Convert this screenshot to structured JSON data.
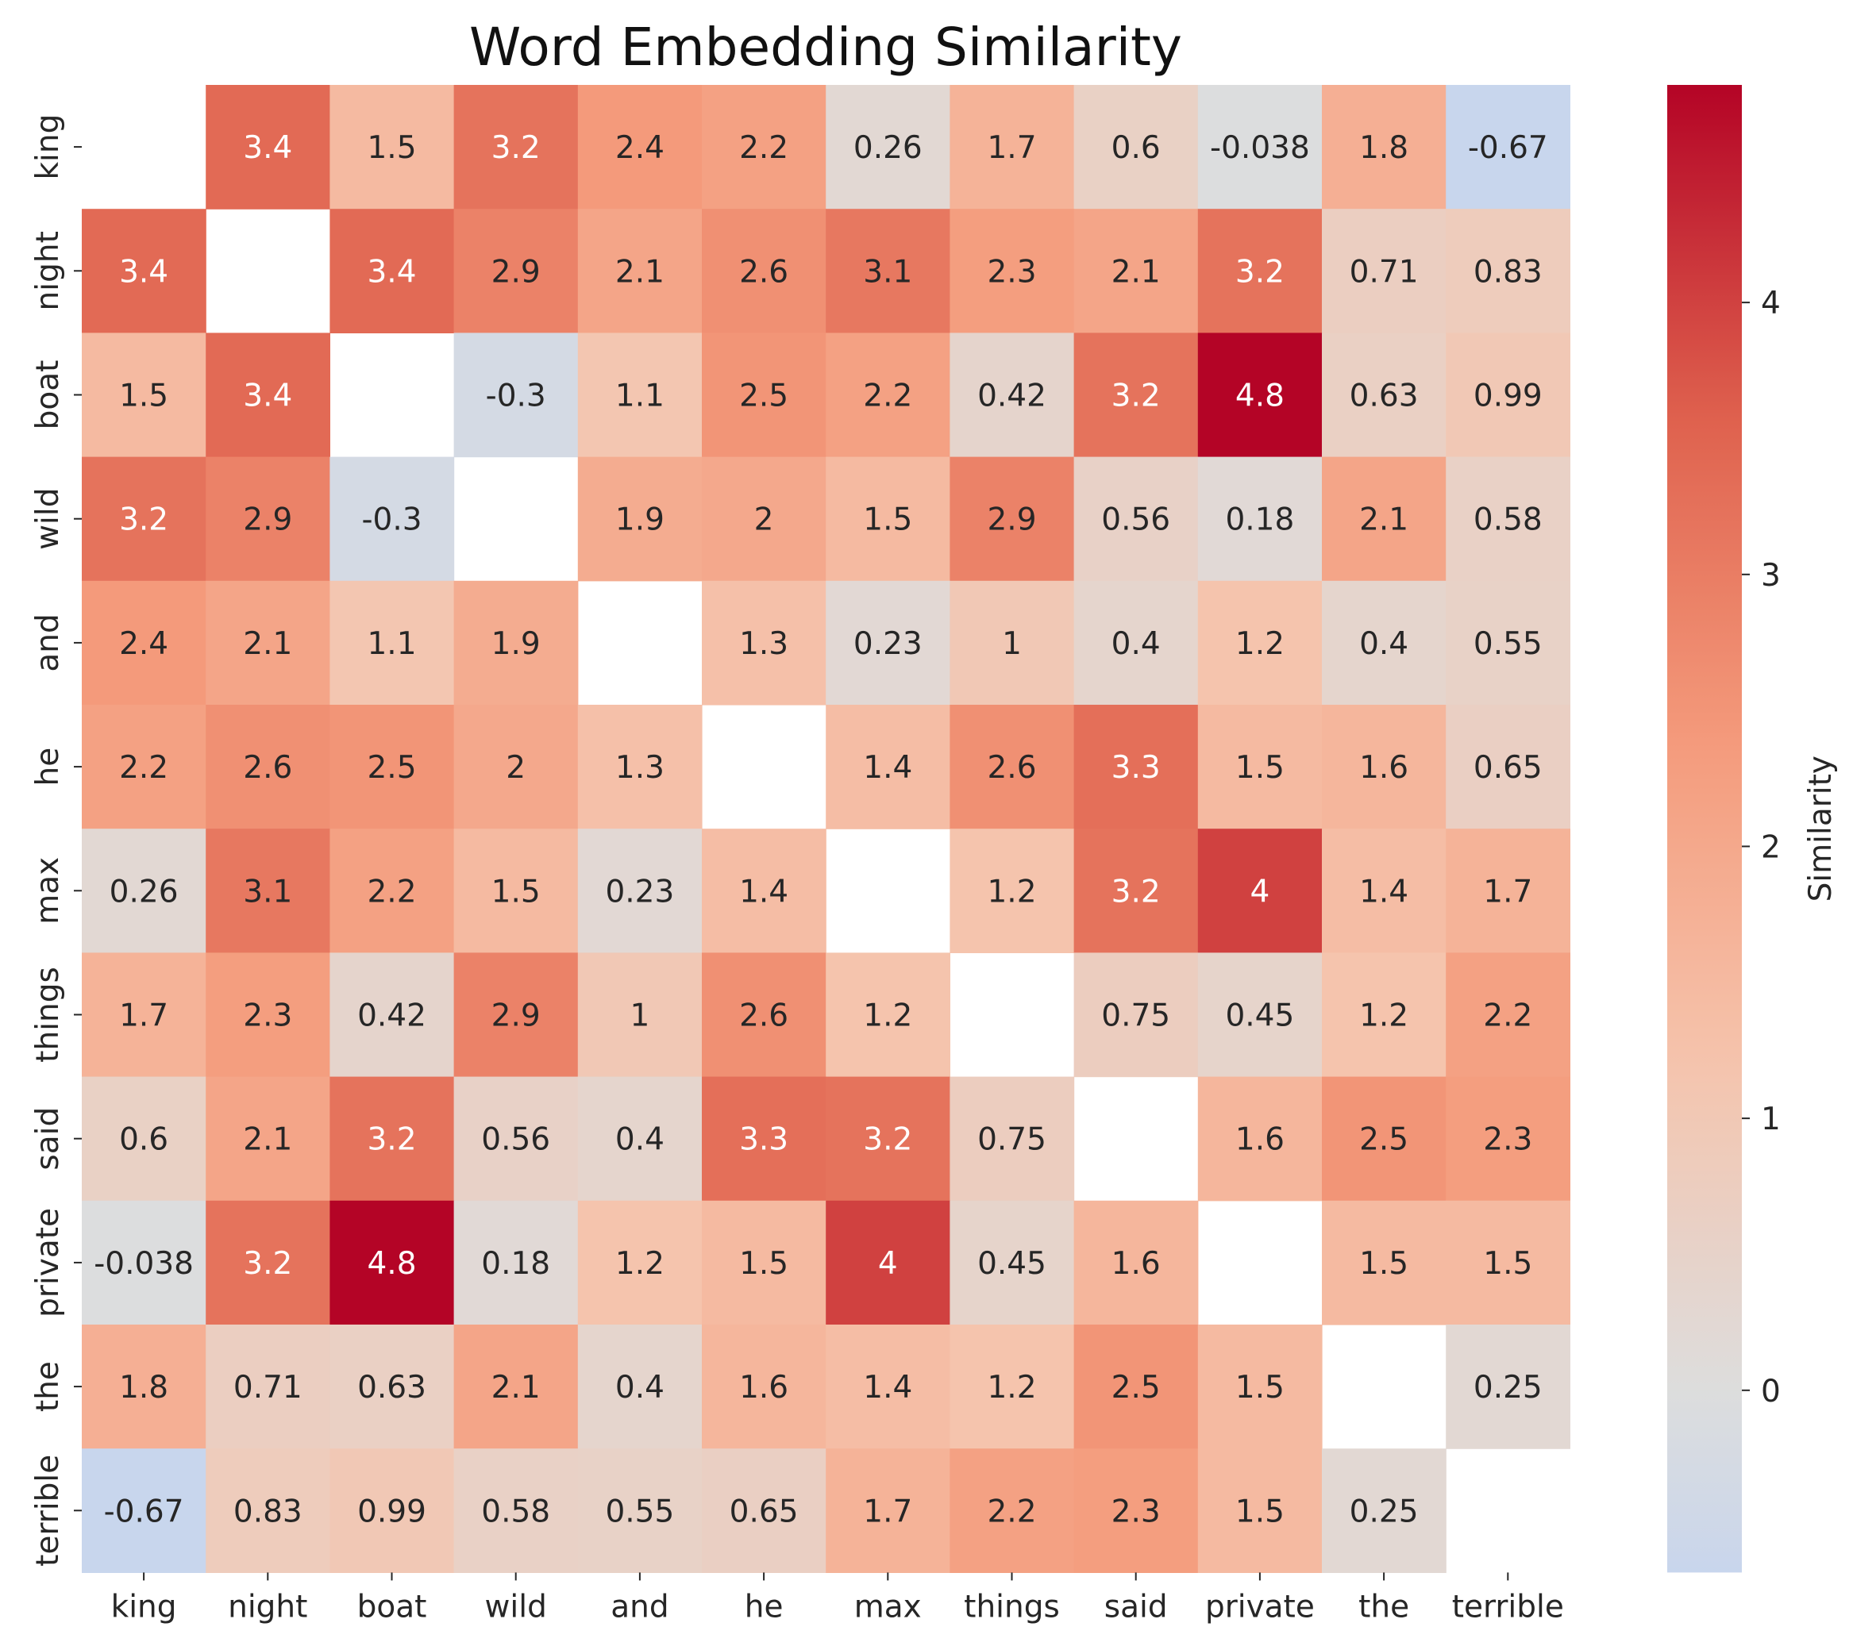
{
  "chart_data": {
    "type": "heatmap",
    "title": "Word Embedding Similarity",
    "xlabel": "",
    "ylabel": "",
    "words": [
      "king",
      "night",
      "boat",
      "wild",
      "and",
      "he",
      "max",
      "things",
      "said",
      "private",
      "the",
      "terrible"
    ],
    "matrix": [
      [
        null,
        3.4,
        1.5,
        3.2,
        2.4,
        2.2,
        0.26,
        1.7,
        0.6,
        -0.038,
        1.8,
        -0.67
      ],
      [
        3.4,
        null,
        3.4,
        2.9,
        2.1,
        2.6,
        3.1,
        2.3,
        2.1,
        3.2,
        0.71,
        0.83
      ],
      [
        1.5,
        3.4,
        null,
        -0.3,
        1.1,
        2.5,
        2.2,
        0.42,
        3.2,
        4.8,
        0.63,
        0.99
      ],
      [
        3.2,
        2.9,
        -0.3,
        null,
        1.9,
        2,
        1.5,
        2.9,
        0.56,
        0.18,
        2.1,
        0.58
      ],
      [
        2.4,
        2.1,
        1.1,
        1.9,
        null,
        1.3,
        0.23,
        1,
        0.4,
        1.2,
        0.4,
        0.55
      ],
      [
        2.2,
        2.6,
        2.5,
        2,
        1.3,
        null,
        1.4,
        2.6,
        3.3,
        1.5,
        1.6,
        0.65
      ],
      [
        0.26,
        3.1,
        2.2,
        1.5,
        0.23,
        1.4,
        null,
        1.2,
        3.2,
        4,
        1.4,
        1.7
      ],
      [
        1.7,
        2.3,
        0.42,
        2.9,
        1,
        2.6,
        1.2,
        null,
        0.75,
        0.45,
        1.2,
        2.2
      ],
      [
        0.6,
        2.1,
        3.2,
        0.56,
        0.4,
        3.3,
        3.2,
        0.75,
        null,
        1.6,
        2.5,
        2.3
      ],
      [
        -0.038,
        3.2,
        4.8,
        0.18,
        1.2,
        1.5,
        4,
        0.45,
        1.6,
        null,
        1.5,
        1.5
      ],
      [
        1.8,
        0.71,
        0.63,
        2.1,
        0.4,
        1.6,
        1.4,
        1.2,
        2.5,
        1.5,
        null,
        0.25
      ],
      [
        -0.67,
        0.83,
        0.99,
        0.58,
        0.55,
        0.65,
        1.7,
        2.2,
        2.3,
        1.5,
        0.25,
        null
      ]
    ],
    "colormap": "coolwarm",
    "colorbar": {
      "label": "Similarity",
      "vmin": -0.67,
      "vmax": 4.8,
      "center": 0,
      "ticks": [
        0,
        1,
        2,
        3,
        4
      ]
    },
    "annotated": true,
    "diagonal_masked": true
  }
}
